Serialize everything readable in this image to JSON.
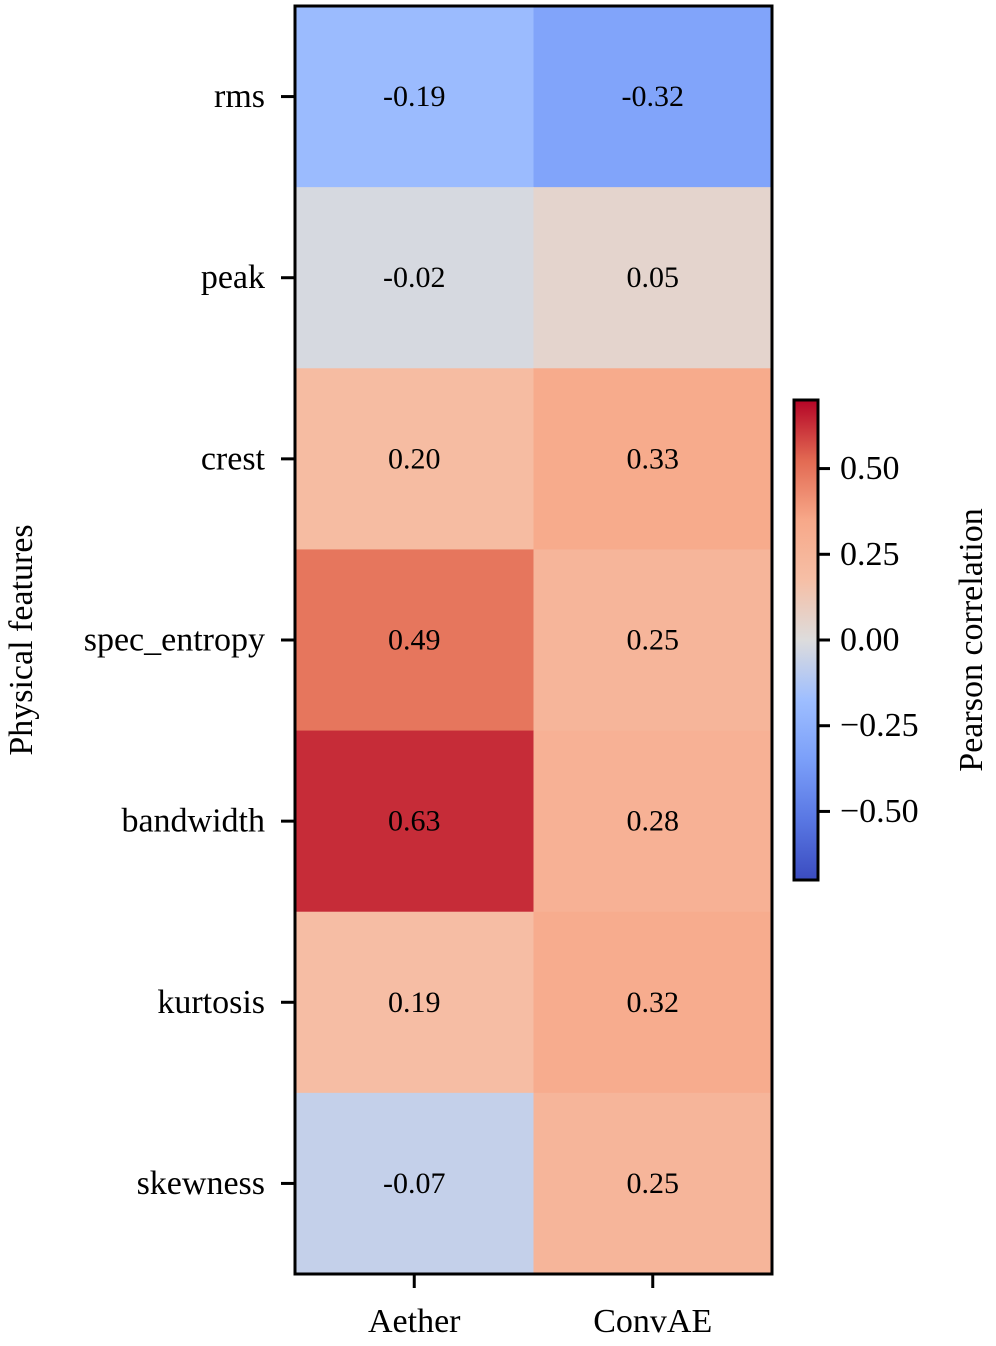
{
  "chart_data": {
    "type": "heatmap",
    "title": "",
    "rows": [
      "rms",
      "peak",
      "crest",
      "spec_entropy",
      "bandwidth",
      "kurtosis",
      "skewness"
    ],
    "columns": [
      "Aether",
      "ConvAE"
    ],
    "values": [
      [
        -0.19,
        -0.32
      ],
      [
        -0.02,
        0.05
      ],
      [
        0.2,
        0.33
      ],
      [
        0.49,
        0.25
      ],
      [
        0.63,
        0.28
      ],
      [
        0.19,
        0.32
      ],
      [
        -0.07,
        0.25
      ]
    ],
    "cell_labels": [
      [
        "-0.19",
        "-0.32"
      ],
      [
        "-0.02",
        "0.05"
      ],
      [
        "0.20",
        "0.33"
      ],
      [
        "0.49",
        "0.25"
      ],
      [
        "0.63",
        "0.28"
      ],
      [
        "0.19",
        "0.32"
      ],
      [
        "-0.07",
        "0.25"
      ]
    ],
    "ylabel": "Physical features",
    "xlabel": "",
    "colormap": "coolwarm",
    "colorbar": {
      "label": "Pearson correlation",
      "vmin": -0.7,
      "vmax": 0.7,
      "ticks": [
        0.5,
        0.25,
        0.0,
        -0.25,
        -0.5
      ],
      "tick_labels": [
        "0.50",
        "0.25",
        "0.00",
        "−0.25",
        "−0.50"
      ]
    }
  }
}
